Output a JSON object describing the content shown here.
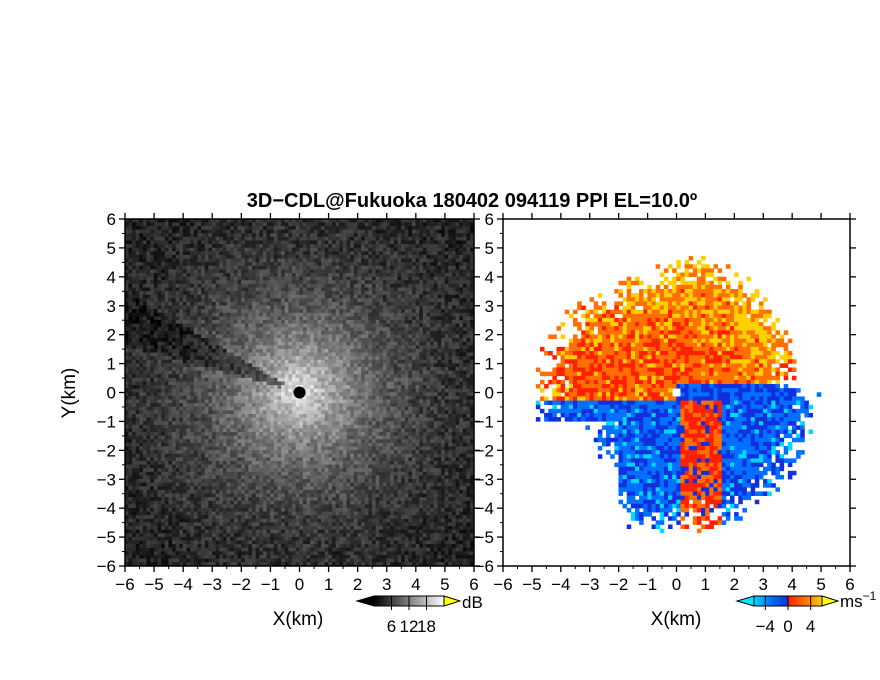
{
  "figure": {
    "title": "3D−CDL@Fukuoka 180402 094119 PPI EL=10.0º"
  },
  "chart_data": [
    {
      "type": "heatmap",
      "panel": "left",
      "description_quantity": "backscatter intensity (grayscale)",
      "xlabel": "X(km)",
      "ylabel": "Y(km)",
      "xlim": [
        -6,
        6
      ],
      "ylim": [
        -6,
        6
      ],
      "xticks": [
        -6,
        -5,
        -4,
        -3,
        -2,
        -1,
        0,
        1,
        2,
        3,
        4,
        5,
        6
      ],
      "yticks": [
        -6,
        -5,
        -4,
        -3,
        -2,
        -1,
        0,
        1,
        2,
        3,
        4,
        5,
        6
      ],
      "tick_labels": [
        "−6",
        "−5",
        "−4",
        "−3",
        "−2",
        "−1",
        "0",
        "1",
        "2",
        "3",
        "4",
        "5",
        "6"
      ],
      "center_marker": [
        0,
        0
      ],
      "colorbar": {
        "unit": "dB",
        "ticks": [
          6,
          12,
          18
        ],
        "tick_labels": [
          "6",
          "12",
          "18"
        ],
        "range": [
          0,
          24
        ],
        "colors": [
          "#000000",
          "#ffffff"
        ],
        "extend": "both",
        "extend_colors": [
          "#000000",
          "#ffff00"
        ]
      }
    },
    {
      "type": "heatmap",
      "panel": "right",
      "description_quantity": "radial velocity",
      "xlabel": "X(km)",
      "ylabel": "",
      "xlim": [
        -6,
        6
      ],
      "ylim": [
        -6,
        6
      ],
      "xticks": [
        -6,
        -5,
        -4,
        -3,
        -2,
        -1,
        0,
        1,
        2,
        3,
        4,
        5,
        6
      ],
      "yticks": [
        -6,
        -5,
        -4,
        -3,
        -2,
        -1,
        0,
        1,
        2,
        3,
        4,
        5,
        6
      ],
      "tick_labels": [
        "−6",
        "−5",
        "−4",
        "−3",
        "−2",
        "−1",
        "0",
        "1",
        "2",
        "3",
        "4",
        "5",
        "6"
      ],
      "max_range_km": 5,
      "colorbar": {
        "unit": "ms",
        "unit_exponent": "−1",
        "ticks": [
          -4,
          0,
          4
        ],
        "tick_labels": [
          "−4",
          "0",
          "4"
        ],
        "range": [
          -6,
          6
        ],
        "colors": [
          "#00d8ff",
          "#0070ff",
          "#1030e0",
          "#ff2000",
          "#ff7000",
          "#ffd000"
        ],
        "extend": "both",
        "extend_colors": [
          "#00e8ff",
          "#ffff00"
        ]
      }
    }
  ]
}
